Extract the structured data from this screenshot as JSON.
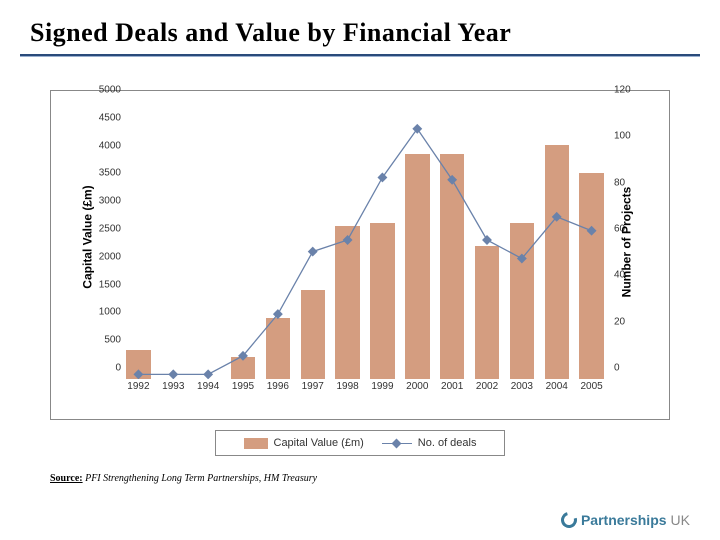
{
  "title": "Signed Deals and Value by Financial Year",
  "title_fontsize": 26,
  "title_color": "#000000",
  "chart": {
    "type": "bar+line",
    "background_color": "#ffffff",
    "border_color": "#888888",
    "categories": [
      "1992",
      "1993",
      "1994",
      "1995",
      "1996",
      "1997",
      "1998",
      "1999",
      "2000",
      "2001",
      "2002",
      "2003",
      "2004",
      "2005"
    ],
    "bar_series": {
      "name": "Capital Value (£m)",
      "values": [
        530,
        0,
        0,
        400,
        1100,
        1600,
        2750,
        2800,
        4050,
        4050,
        2400,
        2800,
        4200,
        3700
      ],
      "color": "#d49d80",
      "bar_width": 0.7
    },
    "line_series": {
      "name": "No. of deals",
      "values": [
        2,
        2,
        2,
        10,
        28,
        55,
        60,
        87,
        108,
        86,
        60,
        52,
        70,
        64
      ],
      "color": "#6a82aa",
      "marker_shape": "diamond",
      "marker_size": 7,
      "line_width": 1.3
    },
    "y_left": {
      "label": "Capital Value (£m)",
      "min": 0,
      "max": 5000,
      "tick_step": 500,
      "ticks": [
        0,
        500,
        1000,
        1500,
        2000,
        2500,
        3000,
        3500,
        4000,
        4500,
        5000
      ],
      "fontsize": 10,
      "label_fontsize": 12
    },
    "y_right": {
      "label": "Number of Projects",
      "min": 0,
      "max": 120,
      "tick_step": 20,
      "ticks": [
        0,
        20,
        40,
        60,
        80,
        100,
        120
      ],
      "fontsize": 10,
      "label_fontsize": 12
    },
    "x": {
      "fontsize": 10
    },
    "legend": {
      "items": [
        "Capital Value (£m)",
        "No. of deals"
      ],
      "fontsize": 11,
      "border_color": "#888888"
    }
  },
  "source": {
    "label": "Source:",
    "text": "PFI Strengthening Long Term Partnerships, HM Treasury"
  },
  "logo": {
    "bold": "Partnerships",
    "light": "UK",
    "color": "#3a7a9a"
  }
}
